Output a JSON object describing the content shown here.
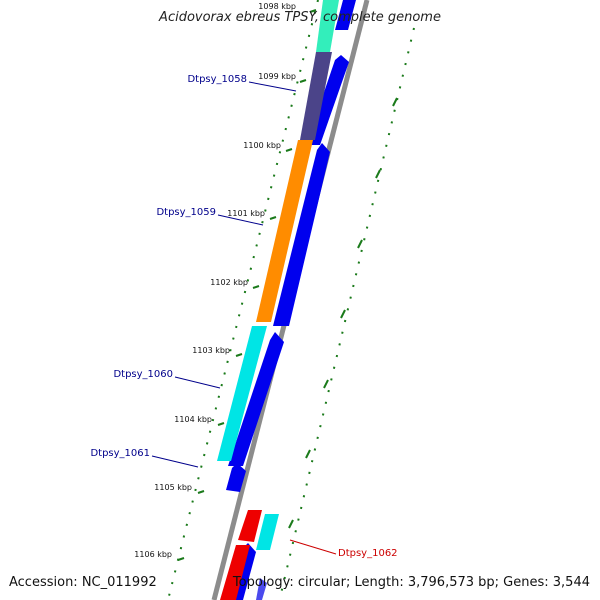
{
  "map": {
    "title": "Acidovorax ebreus TPSY, complete genome",
    "accession": "Accession: NC_011992",
    "summary": "Topology: circular; Length: 3,796,573 bp; Genes: 3,544"
  },
  "ticks": [
    {
      "label": "1098 kbp"
    },
    {
      "label": "1099 kbp"
    },
    {
      "label": "1100 kbp"
    },
    {
      "label": "1101 kbp"
    },
    {
      "label": "1102 kbp"
    },
    {
      "label": "1103 kbp"
    },
    {
      "label": "1104 kbp"
    },
    {
      "label": "1105 kbp"
    },
    {
      "label": "1106 kbp"
    }
  ],
  "genes": [
    {
      "label": "Dtpsy_1058",
      "color": "#00008b"
    },
    {
      "label": "Dtpsy_1059",
      "color": "#00008b"
    },
    {
      "label": "Dtpsy_1060",
      "color": "#00008b"
    },
    {
      "label": "Dtpsy_1061",
      "color": "#00008b"
    },
    {
      "label": "Dtpsy_1062",
      "color": "#cc0000"
    }
  ],
  "colors": {
    "backbone": "#8c8c8c",
    "cds": "#0000ee",
    "tick": "#1a7a1a",
    "aqua": "#33eebb",
    "purple": "#4b4489",
    "orange": "#ff8c00",
    "cyan": "#00e5e5",
    "red": "#ee0000"
  }
}
